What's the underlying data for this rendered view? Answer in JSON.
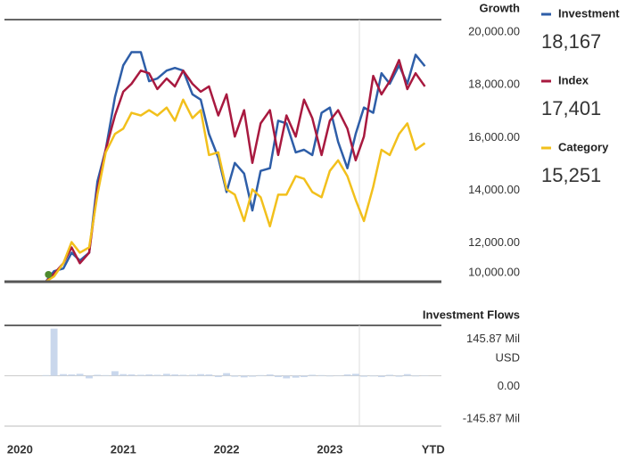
{
  "chart_data": [
    {
      "type": "line",
      "title": "Growth",
      "x": [
        2020.25,
        2020.33,
        2020.42,
        2020.5,
        2020.58,
        2020.67,
        2020.75,
        2020.83,
        2020.92,
        2021,
        2021.08,
        2021.17,
        2021.25,
        2021.33,
        2021.42,
        2021.5,
        2021.58,
        2021.67,
        2021.75,
        2021.83,
        2021.92,
        2022,
        2022.08,
        2022.17,
        2022.25,
        2022.33,
        2022.42,
        2022.5,
        2022.58,
        2022.67,
        2022.75,
        2022.83,
        2022.92,
        2023,
        2023.08,
        2023.17,
        2023.25,
        2023.33,
        2023.42,
        2023.5,
        2023.58,
        2023.67,
        2023.75,
        2023.83,
        2023.92
      ],
      "xlim": [
        2019.85,
        2024.08
      ],
      "ylim": [
        10000,
        20000
      ],
      "yticks": [
        {
          "value": 20000,
          "label": "20,000.00"
        },
        {
          "value": 18000,
          "label": "18,000.00"
        },
        {
          "value": 16000,
          "label": "16,000.00"
        },
        {
          "value": 14000,
          "label": "14,000.00"
        },
        {
          "value": 12000,
          "label": "12,000.00"
        },
        {
          "value": 10000,
          "label": "10,000.00"
        }
      ],
      "series": [
        {
          "name": "Investment",
          "color": "#2e5ea8",
          "values": [
            10000,
            10400,
            10500,
            11100,
            10800,
            11100,
            13800,
            15000,
            17000,
            18200,
            18700,
            18700,
            17600,
            17700,
            18000,
            18100,
            18000,
            17100,
            16900,
            15600,
            14700,
            13400,
            14500,
            14100,
            12700,
            14200,
            14300,
            16100,
            16000,
            14900,
            15000,
            14800,
            16400,
            16600,
            15300,
            14300,
            15600,
            16600,
            16400,
            17900,
            17500,
            18200,
            17500,
            18600,
            18167
          ],
          "value_labels": [
            null,
            null,
            null,
            null,
            null,
            null,
            null,
            null,
            null,
            null,
            null,
            null,
            null,
            null,
            null,
            null,
            null,
            null,
            null,
            null,
            null,
            null,
            null,
            null,
            null,
            null,
            null,
            null,
            null,
            null,
            null,
            null,
            null,
            null,
            null,
            null,
            null,
            null,
            null,
            null,
            null,
            null,
            null,
            null,
            "18,167"
          ]
        },
        {
          "name": "Index",
          "color": "#a8193f",
          "values": [
            10000,
            10300,
            10700,
            11300,
            10700,
            11100,
            13500,
            15000,
            16300,
            17200,
            17500,
            18000,
            17900,
            17300,
            17700,
            17400,
            18000,
            17500,
            17200,
            17400,
            16300,
            17100,
            15500,
            16500,
            14500,
            16000,
            16500,
            14800,
            16300,
            15500,
            16900,
            16200,
            14800,
            16100,
            16500,
            15800,
            14600,
            15500,
            17800,
            17100,
            17600,
            18400,
            17300,
            17900,
            17401
          ],
          "value_labels": [
            null,
            null,
            null,
            null,
            null,
            null,
            null,
            null,
            null,
            null,
            null,
            null,
            null,
            null,
            null,
            null,
            null,
            null,
            null,
            null,
            null,
            null,
            null,
            null,
            null,
            null,
            null,
            null,
            null,
            null,
            null,
            null,
            null,
            null,
            null,
            null,
            null,
            null,
            null,
            null,
            null,
            null,
            null,
            null,
            "17,401"
          ]
        },
        {
          "name": "Category",
          "color": "#f2c01c",
          "values": [
            10000,
            10200,
            10700,
            11500,
            11100,
            11300,
            13300,
            14900,
            15600,
            15800,
            16400,
            16300,
            16500,
            16300,
            16600,
            16100,
            16900,
            16200,
            16500,
            14800,
            14900,
            13500,
            13300,
            12300,
            13500,
            13200,
            12100,
            13300,
            13300,
            14000,
            13900,
            13400,
            13200,
            14200,
            14600,
            14000,
            13100,
            12300,
            13600,
            15000,
            14800,
            15600,
            16000,
            15000,
            15251
          ],
          "value_labels": [
            null,
            null,
            null,
            null,
            null,
            null,
            null,
            null,
            null,
            null,
            null,
            null,
            null,
            null,
            null,
            null,
            null,
            null,
            null,
            null,
            null,
            null,
            null,
            null,
            null,
            null,
            null,
            null,
            null,
            null,
            null,
            null,
            null,
            null,
            null,
            null,
            null,
            null,
            null,
            null,
            null,
            null,
            null,
            null,
            "15,251"
          ]
        }
      ]
    },
    {
      "type": "bar",
      "title": "Investment Flows",
      "ylabel": "USD",
      "color": "#c9d7ec",
      "x": [
        2020.25,
        2020.33,
        2020.42,
        2020.5,
        2020.58,
        2020.67,
        2020.75,
        2020.83,
        2020.92,
        2021,
        2021.08,
        2021.17,
        2021.25,
        2021.33,
        2021.42,
        2021.5,
        2021.58,
        2021.67,
        2021.75,
        2021.83,
        2021.92,
        2022,
        2022.08,
        2022.17,
        2022.25,
        2022.33,
        2022.42,
        2022.5,
        2022.58,
        2022.67,
        2022.75,
        2022.83,
        2022.92,
        2023,
        2023.08,
        2023.17,
        2023.25,
        2023.33,
        2023.42,
        2023.5,
        2023.58,
        2023.67,
        2023.75,
        2023.83,
        2023.92
      ],
      "values": [
        2,
        145,
        5,
        4,
        6,
        -8,
        3,
        2,
        14,
        5,
        4,
        3,
        4,
        3,
        6,
        4,
        3,
        3,
        5,
        4,
        -4,
        8,
        -3,
        -5,
        -3,
        2,
        4,
        -4,
        -8,
        -6,
        -4,
        3,
        2,
        -2,
        -1,
        4,
        6,
        -3,
        -2,
        -4,
        3,
        -3,
        5,
        -2,
        -1
      ],
      "xlim": [
        2019.85,
        2024.08
      ],
      "xticks": [
        2020,
        2021,
        2022,
        2023,
        {
          "value": 2024,
          "label": "YTD"
        }
      ],
      "ylim": [
        -155,
        155
      ],
      "yticks": [
        {
          "value": 145.87,
          "label": "145.87 Mil"
        },
        {
          "value": 0,
          "label": "0.00"
        },
        {
          "value": -145.87,
          "label": "-145.87 Mil"
        }
      ]
    }
  ]
}
